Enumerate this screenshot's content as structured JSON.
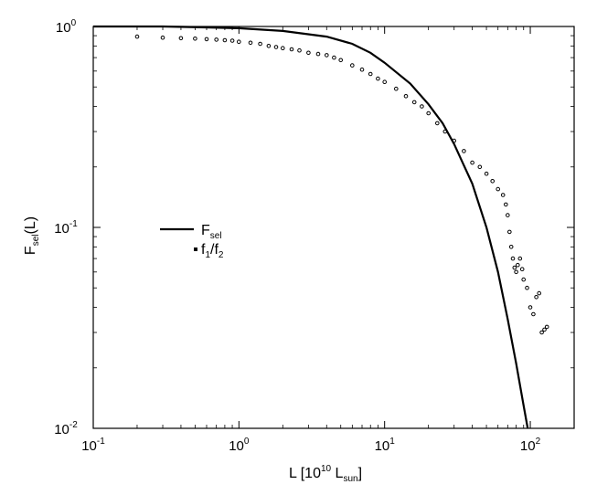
{
  "chart_data": {
    "type": "line",
    "x_scale": "log",
    "y_scale": "log",
    "xlim": [
      0.1,
      200
    ],
    "ylim": [
      0.01,
      1
    ],
    "grid": false,
    "legend_position": "center-left",
    "x_ticks": [
      {
        "value": 0.1,
        "base": "10",
        "exp": "-1"
      },
      {
        "value": 1,
        "base": "10",
        "exp": "0"
      },
      {
        "value": 10,
        "base": "10",
        "exp": "1"
      },
      {
        "value": 100,
        "base": "10",
        "exp": "2"
      }
    ],
    "y_ticks": [
      {
        "value": 0.01,
        "base": "10",
        "exp": "-2"
      },
      {
        "value": 0.1,
        "base": "10",
        "exp": "-1"
      },
      {
        "value": 1,
        "base": "10",
        "exp": "0"
      }
    ],
    "xlabel": {
      "pre": "L [10",
      "sup": "10",
      "mid": " L",
      "sub": "sun",
      "post": "]"
    },
    "ylabel": {
      "pre": "F",
      "sub": "sel",
      "post": "(L)"
    },
    "series": [
      {
        "name": {
          "pre": "F",
          "sub": "sel",
          "post": ""
        },
        "style": "line",
        "color": "#000000",
        "x": [
          0.1,
          0.3,
          0.6,
          1.0,
          2.0,
          4.0,
          6.0,
          8.0,
          10.0,
          15.0,
          20.0,
          25.0,
          30.0,
          40.0,
          50.0,
          60.0,
          70.0,
          80.0,
          90.0,
          96.0
        ],
        "y": [
          1.0,
          1.0,
          0.99,
          0.98,
          0.95,
          0.89,
          0.82,
          0.74,
          0.66,
          0.52,
          0.41,
          0.33,
          0.26,
          0.165,
          0.1,
          0.06,
          0.035,
          0.021,
          0.013,
          0.01
        ]
      },
      {
        "name": {
          "pre": "f",
          "sub": "1",
          "mid": "/f",
          "sub2": "2",
          "post": ""
        },
        "style": "markers",
        "color": "#000000",
        "x": [
          0.2,
          0.3,
          0.4,
          0.5,
          0.6,
          0.7,
          0.8,
          0.9,
          1.0,
          1.2,
          1.4,
          1.6,
          1.8,
          2.0,
          2.3,
          2.6,
          3.0,
          3.5,
          4.0,
          4.5,
          5.0,
          6.0,
          7.0,
          8.0,
          9.0,
          10.0,
          12.0,
          14.0,
          16.0,
          18.0,
          20.0,
          23.0,
          26.0,
          30.0,
          35.0,
          40.0,
          45.0,
          50.0,
          55.0,
          60.0,
          65.0,
          68.0,
          70.0,
          72.0,
          74.0,
          76.0,
          78.0,
          80.0,
          82.0,
          85.0,
          88.0,
          90.0,
          95.0,
          100.0,
          105.0,
          110.0,
          115.0,
          120.0,
          125.0,
          130.0
        ],
        "y": [
          0.89,
          0.88,
          0.875,
          0.87,
          0.865,
          0.86,
          0.855,
          0.85,
          0.84,
          0.83,
          0.82,
          0.8,
          0.79,
          0.78,
          0.77,
          0.76,
          0.74,
          0.73,
          0.72,
          0.7,
          0.68,
          0.64,
          0.61,
          0.58,
          0.55,
          0.53,
          0.49,
          0.45,
          0.42,
          0.4,
          0.37,
          0.33,
          0.3,
          0.27,
          0.24,
          0.21,
          0.2,
          0.185,
          0.17,
          0.155,
          0.145,
          0.13,
          0.115,
          0.095,
          0.08,
          0.07,
          0.063,
          0.06,
          0.065,
          0.07,
          0.062,
          0.055,
          0.05,
          0.04,
          0.037,
          0.045,
          0.047,
          0.03,
          0.031,
          0.032
        ]
      }
    ]
  }
}
